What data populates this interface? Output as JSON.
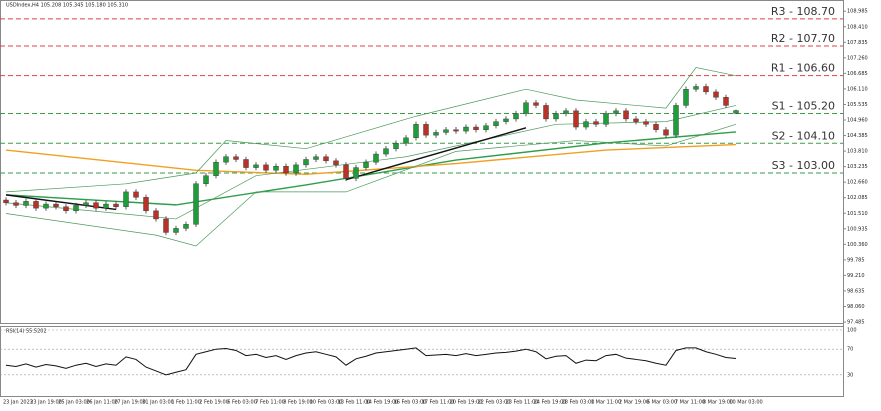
{
  "chart_data": {
    "type": "candlestick",
    "title": "USDIndex,H4  105.208 105.345 105.180 105.310",
    "ylim": [
      97.45,
      109.4
    ],
    "yticks": [
      108.985,
      {
        "value": 108.41,
        "label": "108.410"
      },
      107.835,
      {
        "value": 107.26,
        "label": "107.260"
      },
      106.685,
      {
        "value": 106.11,
        "label": "106.110"
      },
      105.535,
      {
        "value": 104.96,
        "label": "104.960"
      },
      104.385,
      {
        "value": 103.81,
        "label": "103.810"
      },
      103.235,
      {
        "value": 102.66,
        "label": "102.660"
      },
      102.085,
      {
        "value": 101.51,
        "label": "101.510"
      },
      100.935,
      {
        "value": 100.36,
        "label": "100.360"
      },
      99.785,
      {
        "value": 99.21,
        "label": "99.210"
      },
      98.635,
      {
        "value": 98.06,
        "label": "98.060"
      },
      97.485
    ],
    "x_labels": [
      "23 Jan 2023",
      "23 Jan 19:00",
      "25 Jan 03:00",
      "26 Jan 11:00",
      "27 Jan 19:00",
      "31 Jan 03:00",
      "1 Feb 11:00",
      "2 Feb 19:00",
      "6 Feb 03:00",
      "7 Feb 11:00",
      "8 Feb 19:00",
      "10 Feb 03:00",
      "13 Feb 11:00",
      "14 Feb 19:00",
      "16 Feb 03:00",
      "17 Feb 11:00",
      "20 Feb 19:00",
      "22 Feb 03:00",
      "23 Feb 11:00",
      "24 Feb 19:00",
      "28 Feb 03:00",
      "1 Mar 11:00",
      "2 Mar 19:00",
      "6 Mar 03:00",
      "7 Mar 11:00",
      "8 Mar 19:00",
      "10 Mar 03:00"
    ],
    "up_color": "#1f9d3a",
    "down_color": "#b8322a",
    "open": [
      102.0,
      101.9,
      101.8,
      101.95,
      101.7,
      101.85,
      101.75,
      101.6,
      101.8,
      101.9,
      101.7,
      101.85,
      101.75,
      102.3,
      102.1,
      101.6,
      101.3,
      100.8,
      100.95,
      101.1,
      102.6,
      102.9,
      103.4,
      103.6,
      103.5,
      103.2,
      103.3,
      103.1,
      103.25,
      103.0,
      103.3,
      103.5,
      103.6,
      103.45,
      103.3,
      102.8,
      103.2,
      103.4,
      103.7,
      103.9,
      104.1,
      104.3,
      104.8,
      104.4,
      104.5,
      104.6,
      104.55,
      104.7,
      104.6,
      104.75,
      104.9,
      105.0,
      105.2,
      105.6,
      105.5,
      105.0,
      105.2,
      105.3,
      104.7,
      104.9,
      104.8,
      105.2,
      105.3,
      105.0,
      104.9,
      104.8,
      104.6,
      104.4,
      105.5,
      106.1,
      106.2,
      106.0,
      105.8,
      105.208
    ],
    "high": [
      102.1,
      102.0,
      102.05,
      102.05,
      101.95,
      101.95,
      101.85,
      101.9,
      102.0,
      102.0,
      101.95,
      101.95,
      102.4,
      102.4,
      102.2,
      101.7,
      101.4,
      101.05,
      101.2,
      102.7,
      103.0,
      103.5,
      103.7,
      103.7,
      103.6,
      103.4,
      103.4,
      103.35,
      103.35,
      103.4,
      103.6,
      103.7,
      103.7,
      103.55,
      103.4,
      103.3,
      103.5,
      103.8,
      104.0,
      104.2,
      104.4,
      104.9,
      104.9,
      104.6,
      104.7,
      104.7,
      104.8,
      104.8,
      104.85,
      105.0,
      105.1,
      105.3,
      105.7,
      105.7,
      105.6,
      105.3,
      105.4,
      105.4,
      105.0,
      105.0,
      105.3,
      105.4,
      105.4,
      105.1,
      105.0,
      104.9,
      104.7,
      105.6,
      106.2,
      106.3,
      106.3,
      106.1,
      105.9,
      105.345
    ],
    "low": [
      101.8,
      101.7,
      101.7,
      101.6,
      101.6,
      101.65,
      101.5,
      101.5,
      101.7,
      101.6,
      101.6,
      101.65,
      101.65,
      102.0,
      101.5,
      101.2,
      100.7,
      100.7,
      100.85,
      101.0,
      102.5,
      102.8,
      103.3,
      103.4,
      103.1,
      103.1,
      103.0,
      103.0,
      102.9,
      102.9,
      103.2,
      103.4,
      103.35,
      103.2,
      102.7,
      102.7,
      103.1,
      103.3,
      103.6,
      103.8,
      104.0,
      104.2,
      104.3,
      104.3,
      104.4,
      104.45,
      104.45,
      104.5,
      104.5,
      104.65,
      104.8,
      104.9,
      105.1,
      105.4,
      104.9,
      104.9,
      105.1,
      104.6,
      104.6,
      104.7,
      104.7,
      105.1,
      104.9,
      104.8,
      104.7,
      104.5,
      104.3,
      104.3,
      105.4,
      106.0,
      105.9,
      105.7,
      105.4,
      105.18
    ],
    "close": [
      101.9,
      101.8,
      101.95,
      101.7,
      101.85,
      101.75,
      101.6,
      101.8,
      101.9,
      101.7,
      101.85,
      101.75,
      102.3,
      102.1,
      101.6,
      101.3,
      100.8,
      100.95,
      101.1,
      102.6,
      102.9,
      103.4,
      103.6,
      103.5,
      103.2,
      103.3,
      103.1,
      103.25,
      103.0,
      103.3,
      103.5,
      103.6,
      103.45,
      103.3,
      102.8,
      103.2,
      103.4,
      103.7,
      103.9,
      104.1,
      104.3,
      104.8,
      104.4,
      104.5,
      104.6,
      104.55,
      104.7,
      104.6,
      104.75,
      104.9,
      105.0,
      105.2,
      105.6,
      105.5,
      105.0,
      105.2,
      105.3,
      104.7,
      104.9,
      104.8,
      105.2,
      105.3,
      105.0,
      104.9,
      104.8,
      104.6,
      104.4,
      105.5,
      106.1,
      106.2,
      106.0,
      105.8,
      105.5,
      105.31
    ],
    "overlays": [
      {
        "color": "#2e9e4a",
        "width": 1.4,
        "x": [
          0,
          17,
          30,
          45,
          60,
          73
        ],
        "values": [
          102.19,
          101.82,
          102.56,
          103.48,
          104.11,
          104.52
        ]
      },
      {
        "color": "#f0a020",
        "width": 1.4,
        "x": [
          0,
          19,
          30,
          45,
          60,
          73
        ],
        "values": [
          103.85,
          103.1,
          102.95,
          103.35,
          103.85,
          104.05
        ]
      },
      {
        "color": "#4a9a5a",
        "width": 0.7,
        "x": [
          0,
          17,
          25,
          40,
          55,
          66,
          73
        ],
        "values": [
          101.9,
          101.3,
          102.9,
          103.6,
          104.8,
          104.9,
          105.5
        ]
      },
      {
        "color": "#4a9a5a",
        "width": 0.7,
        "x": [
          0,
          12,
          19,
          22,
          30,
          41,
          52,
          57,
          66,
          69,
          73
        ],
        "values": [
          102.3,
          102.6,
          103.0,
          104.2,
          103.9,
          105.1,
          106.1,
          105.7,
          105.4,
          106.9,
          106.6
        ]
      },
      {
        "color": "#4a9a5a",
        "width": 0.7,
        "x": [
          0,
          15,
          19,
          25,
          34,
          45,
          57,
          66,
          73
        ],
        "values": [
          101.5,
          100.7,
          100.3,
          102.3,
          102.3,
          103.8,
          104.2,
          104.0,
          104.8
        ]
      },
      {
        "color": "#111111",
        "width": 1.4,
        "x": [
          0,
          11
        ],
        "values": [
          102.19,
          101.65
        ]
      },
      {
        "color": "#111111",
        "width": 1.4,
        "x": [
          34,
          52
        ],
        "values": [
          102.75,
          104.67
        ]
      }
    ],
    "levels": [
      {
        "value": 108.7,
        "label": "R3 - 108.70",
        "color": "#e04040"
      },
      {
        "value": 107.7,
        "label": "R2 - 107.70",
        "color": "#e04040"
      },
      {
        "value": 106.6,
        "label": "R1 - 106.60",
        "color": "#e04040"
      },
      {
        "value": 105.2,
        "label": "S1 - 105.20",
        "color": "#3a9a4a"
      },
      {
        "value": 104.1,
        "label": "S2 - 104.10",
        "color": "#3a9a4a"
      },
      {
        "value": 103.0,
        "label": "S3 - 103.00",
        "color": "#3a9a4a"
      }
    ],
    "rsi": {
      "label": "RSI(14) 55.5202",
      "color": "#111111",
      "ylim": [
        0,
        100
      ],
      "yticks": [
        100,
        70,
        30
      ],
      "values": [
        45,
        43,
        47,
        42,
        46,
        44,
        40,
        45,
        48,
        43,
        47,
        45,
        58,
        54,
        42,
        36,
        30,
        34,
        38,
        62,
        66,
        70,
        71,
        68,
        60,
        62,
        57,
        60,
        54,
        60,
        64,
        66,
        62,
        58,
        45,
        55,
        59,
        64,
        66,
        68,
        70,
        72,
        60,
        61,
        62,
        60,
        63,
        60,
        62,
        64,
        65,
        67,
        70,
        66,
        55,
        59,
        60,
        48,
        53,
        52,
        60,
        62,
        56,
        54,
        52,
        48,
        45,
        68,
        72,
        72,
        66,
        62,
        57,
        55.52
      ]
    }
  }
}
